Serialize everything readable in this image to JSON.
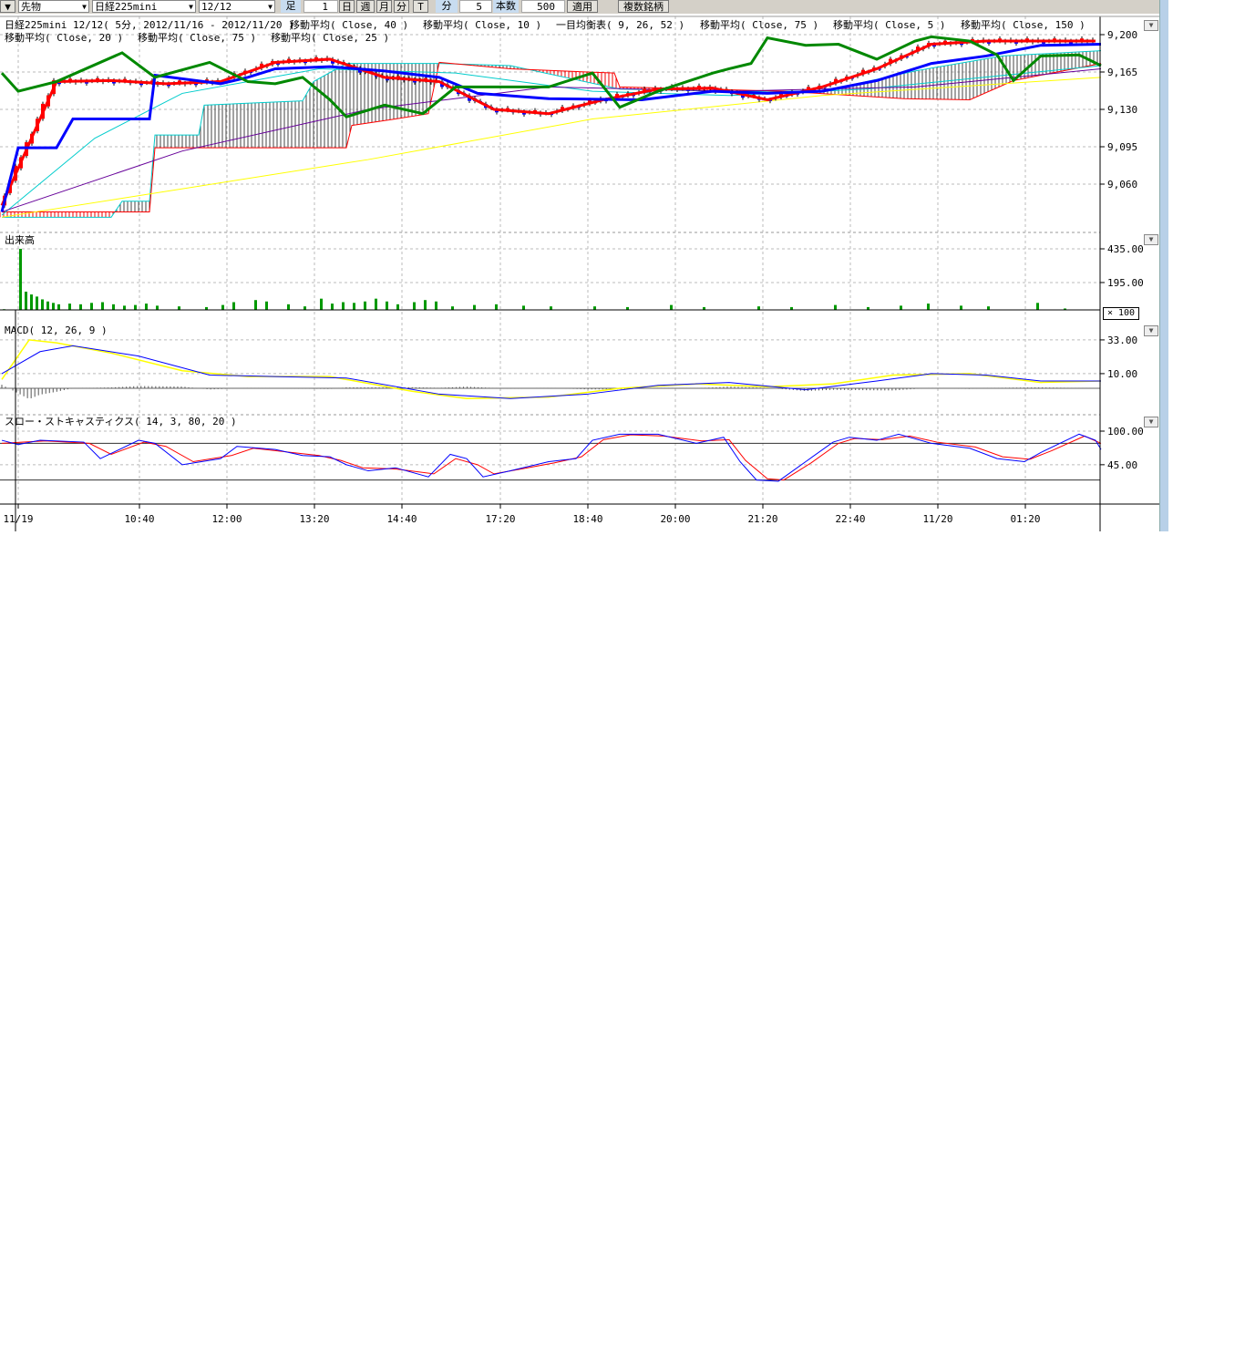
{
  "toolbar": {
    "market": "先物",
    "symbol": "日経225mini",
    "contract": "12/12",
    "ashi_label": "足",
    "ashi_value": "1",
    "period_buttons": [
      "日",
      "週",
      "月",
      "分",
      "T"
    ],
    "interval_label": "分",
    "interval_value": "5",
    "bars_label": "本数",
    "bars_value": "500",
    "apply": "適用",
    "multi": "複数銘柄"
  },
  "legend": {
    "row1": [
      "日経225mini 12/12( 5分, 2012/11/16 - 2012/11/20 )",
      "移動平均( Close, 40 )",
      "移動平均( Close, 10 )",
      "一目均衡表( 9, 26, 52 )",
      "移動平均( Close, 75 )",
      "移動平均( Close, 5 )",
      "移動平均( Close, 150 )"
    ],
    "row2": [
      "移動平均( Close, 20 )",
      "移動平均( Close, 75 )",
      "移動平均( Close, 25 )"
    ]
  },
  "panels": {
    "volume": "出来高",
    "macd": "MACD( 12, 26, 9 )",
    "stoch": "スロー・ストキャスティクス( 14, 3, 80, 20 )",
    "multiplier": "× 100"
  },
  "colors": {
    "ma5": "#ff0000",
    "ma25": "#0000ff",
    "green": "#008800",
    "ma40": "#00cccc",
    "ma75": "#660099",
    "ma150": "#ffff00",
    "volume": "#009900",
    "macd": "#0000ff",
    "signal": "#ffff00",
    "k": "#0000ff",
    "d": "#ff0000"
  },
  "chart_data": [
    {
      "type": "line",
      "name": "price",
      "yticks": [
        "9,200",
        "9,165",
        "9,130",
        "9,095",
        "9,060"
      ],
      "ytick_values": [
        9200,
        9165,
        9130,
        9095,
        9060
      ],
      "xticks": [
        "11/19",
        "10:40",
        "12:00",
        "13:20",
        "14:40",
        "17:20",
        "18:40",
        "20:00",
        "21:20",
        "22:40",
        "11/20",
        "01:20"
      ],
      "close": [
        [
          0,
          9040
        ],
        [
          10,
          9156
        ],
        [
          20,
          9157
        ],
        [
          30,
          9154
        ],
        [
          40,
          9156
        ],
        [
          50,
          9174
        ],
        [
          60,
          9177
        ],
        [
          70,
          9160
        ],
        [
          80,
          9156
        ],
        [
          90,
          9130
        ],
        [
          100,
          9126
        ],
        [
          110,
          9139
        ],
        [
          120,
          9149
        ],
        [
          130,
          9150
        ],
        [
          140,
          9139
        ],
        [
          150,
          9151
        ],
        [
          160,
          9168
        ],
        [
          170,
          9191
        ],
        [
          180,
          9194
        ],
        [
          190,
          9194
        ],
        [
          200,
          9194
        ]
      ],
      "series": [
        {
          "name": "移動平均( Close, 25 )",
          "color": "ma25",
          "points": [
            [
              0,
              9034
            ],
            [
              3,
              9094
            ],
            [
              10,
              9094
            ],
            [
              13,
              9121
            ],
            [
              27,
              9121
            ],
            [
              28,
              9162
            ],
            [
              40,
              9154
            ],
            [
              45,
              9160
            ],
            [
              50,
              9168
            ],
            [
              60,
              9170
            ],
            [
              70,
              9166
            ],
            [
              80,
              9160
            ],
            [
              87,
              9145
            ],
            [
              100,
              9140
            ],
            [
              117,
              9139
            ],
            [
              130,
              9147
            ],
            [
              140,
              9145
            ],
            [
              150,
              9147
            ],
            [
              160,
              9157
            ],
            [
              170,
              9173
            ],
            [
              180,
              9180
            ],
            [
              190,
              9190
            ],
            [
              201,
              9191
            ]
          ]
        },
        {
          "name": "green",
          "color": "green",
          "points": [
            [
              0,
              9164
            ],
            [
              3,
              9147
            ],
            [
              10,
              9156
            ],
            [
              22,
              9183
            ],
            [
              28,
              9160
            ],
            [
              38,
              9174
            ],
            [
              45,
              9156
            ],
            [
              50,
              9154
            ],
            [
              55,
              9160
            ],
            [
              60,
              9139
            ],
            [
              63,
              9123
            ],
            [
              70,
              9134
            ],
            [
              77,
              9126
            ],
            [
              83,
              9151
            ],
            [
              90,
              9151
            ],
            [
              100,
              9151
            ],
            [
              108,
              9164
            ],
            [
              113,
              9132
            ],
            [
              120,
              9147
            ],
            [
              130,
              9164
            ],
            [
              133,
              9168
            ],
            [
              137,
              9173
            ],
            [
              140,
              9197
            ],
            [
              147,
              9190
            ],
            [
              153,
              9191
            ],
            [
              160,
              9177
            ],
            [
              167,
              9194
            ],
            [
              170,
              9198
            ],
            [
              177,
              9194
            ],
            [
              182,
              9181
            ],
            [
              185,
              9157
            ],
            [
              190,
              9180
            ],
            [
              197,
              9181
            ],
            [
              201,
              9171
            ]
          ]
        },
        {
          "name": "移動平均( Close, 40 )",
          "color": "ma40",
          "points": [
            [
              0,
              9031
            ],
            [
              17,
              9103
            ],
            [
              33,
              9145
            ],
            [
              58,
              9168
            ],
            [
              83,
              9164
            ],
            [
              108,
              9147
            ],
            [
              133,
              9143
            ],
            [
              158,
              9149
            ],
            [
              201,
              9171
            ]
          ]
        },
        {
          "name": "移動平均( Close, 75 )",
          "color": "ma75",
          "points": [
            [
              0,
              9034
            ],
            [
              33,
              9091
            ],
            [
              67,
              9130
            ],
            [
              100,
              9151
            ],
            [
              133,
              9147
            ],
            [
              167,
              9151
            ],
            [
              201,
              9168
            ]
          ]
        },
        {
          "name": "移動平均( Close, 150 )",
          "color": "ma150",
          "points": [
            [
              0,
              9029
            ],
            [
              67,
              9083
            ],
            [
              108,
              9121
            ],
            [
              150,
              9143
            ],
            [
              201,
              9160
            ]
          ]
        }
      ],
      "ichimoku": {
        "span_a": [
          [
            0,
            9029
          ],
          [
            20,
            9029
          ],
          [
            22,
            9044
          ],
          [
            27,
            9044
          ],
          [
            28,
            9106
          ],
          [
            36,
            9106
          ],
          [
            37,
            9134
          ],
          [
            55,
            9138
          ],
          [
            57,
            9156
          ],
          [
            63,
            9173
          ],
          [
            80,
            9173
          ],
          [
            93,
            9171
          ],
          [
            113,
            9149
          ],
          [
            133,
            9147
          ],
          [
            150,
            9147
          ],
          [
            167,
            9166
          ],
          [
            183,
            9180
          ],
          [
            201,
            9185
          ]
        ],
        "span_b": [
          [
            0,
            9034
          ],
          [
            27,
            9034
          ],
          [
            28,
            9094
          ],
          [
            63,
            9094
          ],
          [
            64,
            9115
          ],
          [
            72,
            9121
          ],
          [
            78,
            9126
          ],
          [
            80,
            9174
          ],
          [
            93,
            9168
          ],
          [
            112,
            9164
          ],
          [
            113,
            9151
          ],
          [
            143,
            9147
          ],
          [
            165,
            9140
          ],
          [
            177,
            9139
          ],
          [
            185,
            9157
          ],
          [
            201,
            9173
          ]
        ]
      }
    },
    {
      "type": "bar",
      "name": "出来高",
      "yticks": [
        "435.00",
        "195.00"
      ],
      "ytick_values": [
        435,
        195
      ],
      "values": [
        [
          0,
          5
        ],
        [
          3,
          435
        ],
        [
          4,
          130
        ],
        [
          5,
          110
        ],
        [
          6,
          95
        ],
        [
          7,
          75
        ],
        [
          8,
          60
        ],
        [
          9,
          50
        ],
        [
          10,
          40
        ],
        [
          12,
          45
        ],
        [
          14,
          40
        ],
        [
          16,
          50
        ],
        [
          18,
          55
        ],
        [
          20,
          40
        ],
        [
          22,
          30
        ],
        [
          24,
          35
        ],
        [
          26,
          45
        ],
        [
          28,
          30
        ],
        [
          32,
          25
        ],
        [
          37,
          20
        ],
        [
          40,
          35
        ],
        [
          42,
          55
        ],
        [
          46,
          70
        ],
        [
          48,
          60
        ],
        [
          52,
          40
        ],
        [
          55,
          25
        ],
        [
          58,
          80
        ],
        [
          60,
          45
        ],
        [
          62,
          55
        ],
        [
          64,
          50
        ],
        [
          66,
          60
        ],
        [
          68,
          80
        ],
        [
          70,
          60
        ],
        [
          72,
          40
        ],
        [
          75,
          55
        ],
        [
          77,
          70
        ],
        [
          79,
          60
        ],
        [
          82,
          25
        ],
        [
          86,
          35
        ],
        [
          90,
          40
        ],
        [
          95,
          30
        ],
        [
          100,
          25
        ],
        [
          108,
          25
        ],
        [
          114,
          20
        ],
        [
          122,
          35
        ],
        [
          128,
          20
        ],
        [
          138,
          25
        ],
        [
          144,
          20
        ],
        [
          152,
          35
        ],
        [
          158,
          20
        ],
        [
          164,
          30
        ],
        [
          169,
          45
        ],
        [
          175,
          30
        ],
        [
          180,
          25
        ],
        [
          189,
          50
        ],
        [
          194,
          10
        ]
      ]
    },
    {
      "type": "line",
      "name": "MACD( 12, 26, 9 )",
      "yticks": [
        "33.00",
        "10.00"
      ],
      "ytick_values": [
        33,
        10
      ],
      "macd": [
        [
          0,
          10
        ],
        [
          7,
          25
        ],
        [
          13,
          29
        ],
        [
          25,
          22
        ],
        [
          38,
          9
        ],
        [
          50,
          8
        ],
        [
          63,
          7
        ],
        [
          80,
          -4
        ],
        [
          93,
          -7
        ],
        [
          107,
          -4
        ],
        [
          120,
          2
        ],
        [
          133,
          4
        ],
        [
          147,
          -1
        ],
        [
          160,
          5
        ],
        [
          170,
          10
        ],
        [
          180,
          9
        ],
        [
          190,
          5
        ],
        [
          201,
          5
        ]
      ],
      "signal": [
        [
          0,
          6
        ],
        [
          5,
          33
        ],
        [
          10,
          31
        ],
        [
          20,
          24
        ],
        [
          33,
          12
        ],
        [
          45,
          8
        ],
        [
          60,
          8
        ],
        [
          75,
          -2
        ],
        [
          85,
          -7
        ],
        [
          100,
          -6
        ],
        [
          113,
          0
        ],
        [
          127,
          3
        ],
        [
          140,
          1
        ],
        [
          152,
          3
        ],
        [
          163,
          9
        ],
        [
          177,
          10
        ],
        [
          190,
          4
        ],
        [
          201,
          5
        ]
      ]
    },
    {
      "type": "line",
      "name": "スロー・ストキャスティクス( 14, 3, 80, 20 )",
      "yticks": [
        "100.00",
        "45.00"
      ],
      "ytick_values": [
        100,
        45
      ],
      "levels": [
        80,
        20
      ],
      "k": [
        [
          0,
          85
        ],
        [
          3,
          78
        ],
        [
          7,
          85
        ],
        [
          15,
          82
        ],
        [
          18,
          55
        ],
        [
          25,
          85
        ],
        [
          28,
          80
        ],
        [
          33,
          45
        ],
        [
          40,
          55
        ],
        [
          43,
          75
        ],
        [
          50,
          70
        ],
        [
          55,
          60
        ],
        [
          60,
          58
        ],
        [
          63,
          45
        ],
        [
          67,
          35
        ],
        [
          72,
          40
        ],
        [
          78,
          25
        ],
        [
          82,
          62
        ],
        [
          85,
          55
        ],
        [
          88,
          25
        ],
        [
          93,
          35
        ],
        [
          100,
          50
        ],
        [
          105,
          55
        ],
        [
          108,
          85
        ],
        [
          113,
          95
        ],
        [
          120,
          95
        ],
        [
          127,
          80
        ],
        [
          132,
          90
        ],
        [
          135,
          50
        ],
        [
          138,
          20
        ],
        [
          142,
          18
        ],
        [
          147,
          50
        ],
        [
          152,
          82
        ],
        [
          155,
          90
        ],
        [
          160,
          85
        ],
        [
          164,
          95
        ],
        [
          170,
          80
        ],
        [
          177,
          72
        ],
        [
          182,
          55
        ],
        [
          187,
          50
        ],
        [
          190,
          65
        ],
        [
          197,
          95
        ],
        [
          200,
          85
        ],
        [
          201,
          70
        ]
      ],
      "d": [
        [
          0,
          80
        ],
        [
          4,
          82
        ],
        [
          8,
          84
        ],
        [
          16,
          80
        ],
        [
          20,
          62
        ],
        [
          26,
          82
        ],
        [
          30,
          75
        ],
        [
          35,
          50
        ],
        [
          42,
          60
        ],
        [
          46,
          72
        ],
        [
          52,
          66
        ],
        [
          58,
          60
        ],
        [
          62,
          52
        ],
        [
          66,
          40
        ],
        [
          72,
          38
        ],
        [
          79,
          30
        ],
        [
          83,
          55
        ],
        [
          87,
          45
        ],
        [
          90,
          30
        ],
        [
          95,
          38
        ],
        [
          101,
          48
        ],
        [
          106,
          58
        ],
        [
          110,
          86
        ],
        [
          115,
          94
        ],
        [
          121,
          92
        ],
        [
          128,
          84
        ],
        [
          133,
          86
        ],
        [
          136,
          52
        ],
        [
          140,
          22
        ],
        [
          143,
          20
        ],
        [
          148,
          48
        ],
        [
          153,
          80
        ],
        [
          156,
          88
        ],
        [
          161,
          86
        ],
        [
          166,
          92
        ],
        [
          171,
          82
        ],
        [
          178,
          74
        ],
        [
          183,
          58
        ],
        [
          188,
          54
        ],
        [
          192,
          68
        ],
        [
          198,
          92
        ],
        [
          201,
          80
        ]
      ]
    }
  ]
}
